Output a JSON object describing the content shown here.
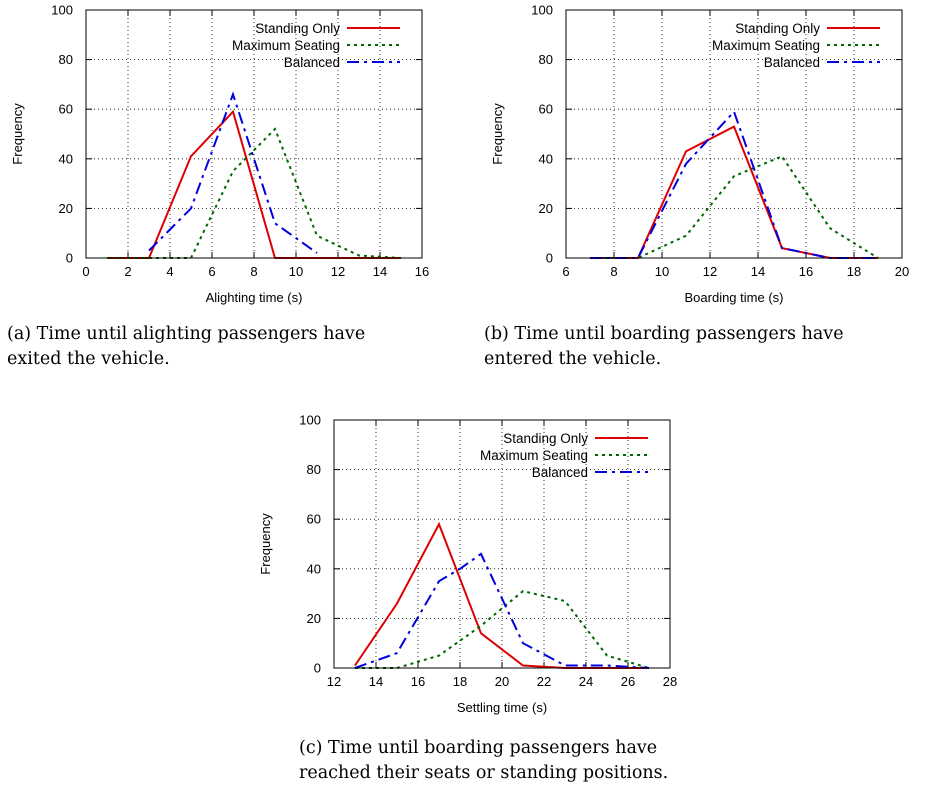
{
  "colors": {
    "standing_only": "#dd0000",
    "maximum_seating": "#006600",
    "balanced": "#0000dd"
  },
  "chart_data": [
    {
      "type": "line",
      "panel": "a",
      "caption": [
        "(a) Time until alighting passengers have",
        "exited the vehicle."
      ],
      "xlabel": "Alighting time (s)",
      "ylabel": "Frequency",
      "xlim": [
        0,
        16
      ],
      "ylim": [
        0,
        100
      ],
      "xticks": [
        0,
        2,
        4,
        6,
        8,
        10,
        12,
        14,
        16
      ],
      "yticks": [
        0,
        20,
        40,
        60,
        80,
        100
      ],
      "grid": true,
      "legend": "top-right",
      "series": [
        {
          "name": "Standing Only",
          "style": "solid",
          "x": [
            1,
            3,
            5,
            7,
            9,
            11,
            13,
            15
          ],
          "y": [
            0,
            0,
            41,
            59,
            0,
            0,
            0,
            0
          ]
        },
        {
          "name": "Maximum Seating",
          "style": "dotted",
          "x": [
            1,
            3,
            5,
            7,
            9,
            11,
            13,
            15
          ],
          "y": [
            0,
            0,
            0,
            35,
            52,
            9,
            1,
            0
          ]
        },
        {
          "name": "Balanced",
          "style": "dashdot",
          "x": [
            3,
            5,
            7,
            9,
            11
          ],
          "y": [
            3,
            20,
            66,
            14,
            2
          ]
        }
      ]
    },
    {
      "type": "line",
      "panel": "b",
      "caption": [
        "(b) Time until boarding passengers have",
        "entered the vehicle."
      ],
      "xlabel": "Boarding time (s)",
      "ylabel": "Frequency",
      "xlim": [
        6,
        20
      ],
      "ylim": [
        0,
        100
      ],
      "xticks": [
        6,
        8,
        10,
        12,
        14,
        16,
        18,
        20
      ],
      "yticks": [
        0,
        20,
        40,
        60,
        80,
        100
      ],
      "grid": true,
      "legend": "top-right",
      "series": [
        {
          "name": "Standing Only",
          "style": "solid",
          "x": [
            7,
            9,
            11,
            13,
            15,
            17,
            19
          ],
          "y": [
            0,
            0,
            43,
            53,
            4,
            0,
            0
          ]
        },
        {
          "name": "Maximum Seating",
          "style": "dotted",
          "x": [
            7,
            9,
            11,
            13,
            15,
            17,
            19
          ],
          "y": [
            0,
            0,
            9,
            33,
            41,
            12,
            0
          ]
        },
        {
          "name": "Balanced",
          "style": "dashdot",
          "x": [
            7,
            9,
            11,
            13,
            15,
            17,
            19
          ],
          "y": [
            0,
            0,
            38,
            59,
            4,
            0,
            0
          ]
        }
      ]
    },
    {
      "type": "line",
      "panel": "c",
      "caption": [
        "(c) Time until boarding passengers have",
        "reached their seats or standing positions."
      ],
      "xlabel": "Settling time (s)",
      "ylabel": "Frequency",
      "xlim": [
        12,
        28
      ],
      "ylim": [
        0,
        100
      ],
      "xticks": [
        12,
        14,
        16,
        18,
        20,
        22,
        24,
        26,
        28
      ],
      "yticks": [
        0,
        20,
        40,
        60,
        80,
        100
      ],
      "grid": true,
      "legend": "top-right",
      "series": [
        {
          "name": "Standing Only",
          "style": "solid",
          "x": [
            13,
            15,
            17,
            19,
            21,
            23,
            25,
            27
          ],
          "y": [
            1,
            26,
            58,
            14,
            1,
            0,
            0,
            0
          ]
        },
        {
          "name": "Maximum Seating",
          "style": "dotted",
          "x": [
            13,
            15,
            17,
            19,
            21,
            23,
            25,
            27
          ],
          "y": [
            0,
            0,
            5,
            17,
            31,
            27,
            5,
            0
          ]
        },
        {
          "name": "Balanced",
          "style": "dashdot",
          "x": [
            13,
            15,
            17,
            18,
            19,
            21,
            23,
            25,
            27
          ],
          "y": [
            0,
            6,
            35,
            40,
            46,
            10,
            1,
            1,
            0
          ]
        }
      ]
    }
  ]
}
